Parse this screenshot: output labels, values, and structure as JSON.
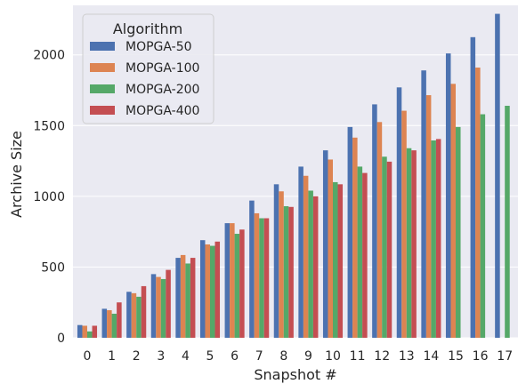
{
  "chart_data": {
    "type": "bar",
    "xlabel": "Snapshot #",
    "ylabel": "Archive Size",
    "ylim": [
      0,
      2350
    ],
    "yticks": [
      0,
      500,
      1000,
      1500,
      2000
    ],
    "categories": [
      "0",
      "1",
      "2",
      "3",
      "4",
      "5",
      "6",
      "7",
      "8",
      "9",
      "10",
      "11",
      "12",
      "13",
      "14",
      "15",
      "16",
      "17"
    ],
    "grid": true,
    "legend": {
      "title": "Algorithm",
      "placement": "top-left"
    },
    "series": [
      {
        "name": "MOPGA-50",
        "color": "#4c72b0",
        "values": [
          90,
          205,
          325,
          450,
          565,
          690,
          810,
          970,
          1085,
          1210,
          1325,
          1490,
          1650,
          1770,
          1890,
          2010,
          2125,
          2290
        ]
      },
      {
        "name": "MOPGA-100",
        "color": "#dd8452",
        "values": [
          85,
          195,
          315,
          430,
          585,
          660,
          810,
          880,
          1035,
          1145,
          1260,
          1415,
          1525,
          1605,
          1715,
          1795,
          1910,
          null
        ]
      },
      {
        "name": "MOPGA-200",
        "color": "#55a868",
        "values": [
          45,
          170,
          290,
          415,
          525,
          650,
          735,
          845,
          930,
          1040,
          1100,
          1210,
          1280,
          1340,
          1395,
          1490,
          1580,
          1640
        ]
      },
      {
        "name": "MOPGA-400",
        "color": "#c44e52",
        "values": [
          85,
          250,
          365,
          480,
          565,
          680,
          765,
          845,
          925,
          1000,
          1085,
          1165,
          1245,
          1325,
          1405,
          null,
          null,
          null
        ]
      }
    ]
  }
}
